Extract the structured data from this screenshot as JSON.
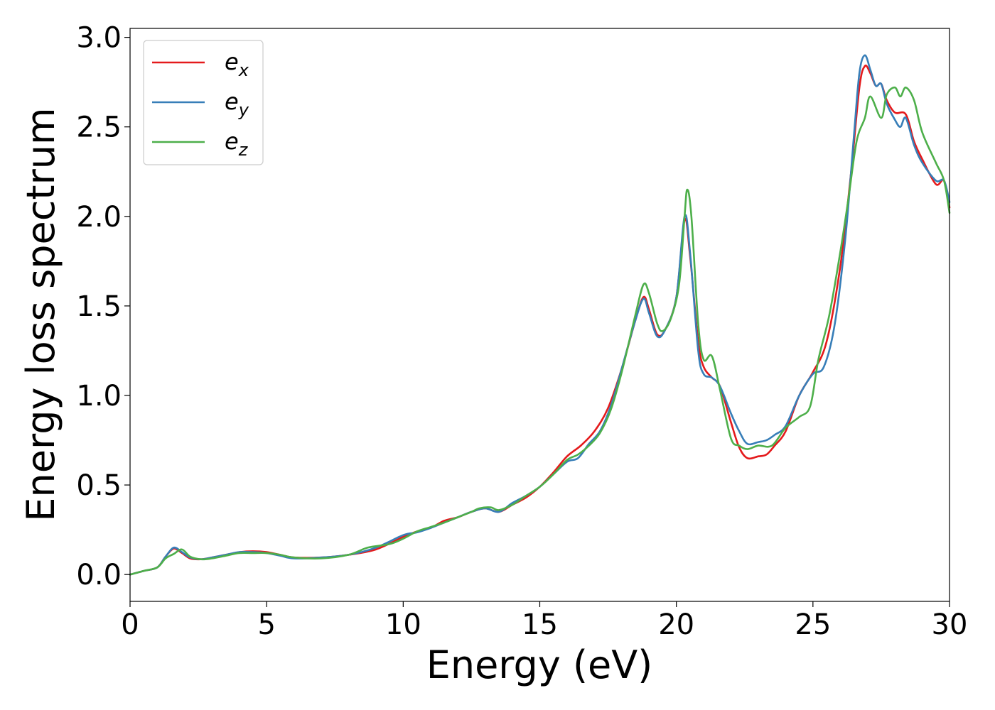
{
  "chart_data": {
    "type": "line",
    "title": "",
    "xlabel": "Energy (eV)",
    "ylabel": "Energy loss spectrum",
    "xlim": [
      0,
      30
    ],
    "ylim": [
      -0.15,
      3.05
    ],
    "xticks": [
      0,
      5,
      10,
      15,
      20,
      25,
      30
    ],
    "xtick_labels": [
      "0",
      "5",
      "10",
      "15",
      "20",
      "25",
      "30"
    ],
    "yticks": [
      0.0,
      0.5,
      1.0,
      1.5,
      2.0,
      2.5,
      3.0
    ],
    "ytick_labels": [
      "0.0",
      "0.5",
      "1.0",
      "1.5",
      "2.0",
      "2.5",
      "3.0"
    ],
    "grid": false,
    "legend_position": "upper-left",
    "series": [
      {
        "name_base": "e",
        "name_sub": "x",
        "color": "#e41a1c",
        "points": [
          [
            0,
            0.0
          ],
          [
            0.5,
            0.02
          ],
          [
            1.0,
            0.04
          ],
          [
            1.3,
            0.1
          ],
          [
            1.6,
            0.145
          ],
          [
            1.9,
            0.12
          ],
          [
            2.2,
            0.09
          ],
          [
            2.6,
            0.085
          ],
          [
            3.0,
            0.095
          ],
          [
            3.5,
            0.11
          ],
          [
            4.0,
            0.125
          ],
          [
            4.5,
            0.13
          ],
          [
            5.0,
            0.125
          ],
          [
            5.5,
            0.11
          ],
          [
            6.0,
            0.095
          ],
          [
            7.0,
            0.095
          ],
          [
            8.0,
            0.11
          ],
          [
            9.0,
            0.14
          ],
          [
            10.0,
            0.21
          ],
          [
            10.5,
            0.24
          ],
          [
            11.0,
            0.26
          ],
          [
            11.5,
            0.3
          ],
          [
            12.0,
            0.32
          ],
          [
            12.5,
            0.35
          ],
          [
            13.0,
            0.37
          ],
          [
            13.5,
            0.35
          ],
          [
            14.0,
            0.39
          ],
          [
            14.5,
            0.43
          ],
          [
            15.0,
            0.49
          ],
          [
            15.5,
            0.57
          ],
          [
            16.0,
            0.66
          ],
          [
            16.5,
            0.72
          ],
          [
            17.0,
            0.8
          ],
          [
            17.5,
            0.93
          ],
          [
            18.0,
            1.15
          ],
          [
            18.5,
            1.42
          ],
          [
            18.8,
            1.55
          ],
          [
            19.0,
            1.48
          ],
          [
            19.3,
            1.34
          ],
          [
            19.6,
            1.37
          ],
          [
            20.0,
            1.55
          ],
          [
            20.3,
            1.98
          ],
          [
            20.5,
            1.78
          ],
          [
            20.8,
            1.3
          ],
          [
            21.0,
            1.16
          ],
          [
            21.3,
            1.1
          ],
          [
            21.6,
            1.05
          ],
          [
            22.0,
            0.85
          ],
          [
            22.3,
            0.71
          ],
          [
            22.6,
            0.65
          ],
          [
            23.0,
            0.66
          ],
          [
            23.3,
            0.67
          ],
          [
            23.6,
            0.72
          ],
          [
            24.0,
            0.8
          ],
          [
            24.5,
            1.0
          ],
          [
            25.0,
            1.13
          ],
          [
            25.5,
            1.3
          ],
          [
            26.0,
            1.72
          ],
          [
            26.4,
            2.25
          ],
          [
            26.7,
            2.72
          ],
          [
            26.9,
            2.84
          ],
          [
            27.1,
            2.8
          ],
          [
            27.3,
            2.73
          ],
          [
            27.5,
            2.74
          ],
          [
            27.7,
            2.65
          ],
          [
            28.0,
            2.58
          ],
          [
            28.4,
            2.57
          ],
          [
            28.7,
            2.42
          ],
          [
            29.0,
            2.32
          ],
          [
            29.5,
            2.18
          ],
          [
            29.8,
            2.2
          ],
          [
            30.0,
            2.05
          ]
        ]
      },
      {
        "name_base": "e",
        "name_sub": "y",
        "color": "#377eb8",
        "points": [
          [
            0,
            0.0
          ],
          [
            0.5,
            0.02
          ],
          [
            1.0,
            0.04
          ],
          [
            1.3,
            0.1
          ],
          [
            1.6,
            0.15
          ],
          [
            1.9,
            0.125
          ],
          [
            2.2,
            0.095
          ],
          [
            2.6,
            0.085
          ],
          [
            3.0,
            0.095
          ],
          [
            3.5,
            0.11
          ],
          [
            4.0,
            0.125
          ],
          [
            4.5,
            0.125
          ],
          [
            5.0,
            0.12
          ],
          [
            5.5,
            0.105
          ],
          [
            6.0,
            0.09
          ],
          [
            7.0,
            0.095
          ],
          [
            8.0,
            0.11
          ],
          [
            9.0,
            0.15
          ],
          [
            10.0,
            0.22
          ],
          [
            10.5,
            0.235
          ],
          [
            11.0,
            0.26
          ],
          [
            11.5,
            0.29
          ],
          [
            12.0,
            0.32
          ],
          [
            12.5,
            0.35
          ],
          [
            13.0,
            0.37
          ],
          [
            13.5,
            0.35
          ],
          [
            14.0,
            0.4
          ],
          [
            14.5,
            0.44
          ],
          [
            15.0,
            0.49
          ],
          [
            15.5,
            0.56
          ],
          [
            16.0,
            0.63
          ],
          [
            16.4,
            0.65
          ],
          [
            16.8,
            0.73
          ],
          [
            17.2,
            0.8
          ],
          [
            17.6,
            0.94
          ],
          [
            18.0,
            1.15
          ],
          [
            18.5,
            1.42
          ],
          [
            18.8,
            1.54
          ],
          [
            19.0,
            1.46
          ],
          [
            19.3,
            1.33
          ],
          [
            19.6,
            1.37
          ],
          [
            20.0,
            1.55
          ],
          [
            20.3,
            2.0
          ],
          [
            20.5,
            1.8
          ],
          [
            20.8,
            1.25
          ],
          [
            21.0,
            1.12
          ],
          [
            21.3,
            1.1
          ],
          [
            21.6,
            1.05
          ],
          [
            22.0,
            0.9
          ],
          [
            22.3,
            0.8
          ],
          [
            22.6,
            0.73
          ],
          [
            23.0,
            0.74
          ],
          [
            23.3,
            0.75
          ],
          [
            23.6,
            0.78
          ],
          [
            24.0,
            0.83
          ],
          [
            24.5,
            1.0
          ],
          [
            25.0,
            1.12
          ],
          [
            25.4,
            1.16
          ],
          [
            25.8,
            1.4
          ],
          [
            26.2,
            1.9
          ],
          [
            26.5,
            2.45
          ],
          [
            26.7,
            2.8
          ],
          [
            26.9,
            2.9
          ],
          [
            27.1,
            2.82
          ],
          [
            27.3,
            2.73
          ],
          [
            27.5,
            2.74
          ],
          [
            27.7,
            2.63
          ],
          [
            28.0,
            2.54
          ],
          [
            28.2,
            2.5
          ],
          [
            28.4,
            2.55
          ],
          [
            28.7,
            2.4
          ],
          [
            29.0,
            2.3
          ],
          [
            29.5,
            2.2
          ],
          [
            29.8,
            2.2
          ],
          [
            30.0,
            2.08
          ]
        ]
      },
      {
        "name_base": "e",
        "name_sub": "z",
        "color": "#4daf4a",
        "points": [
          [
            0,
            0.0
          ],
          [
            0.5,
            0.02
          ],
          [
            1.0,
            0.04
          ],
          [
            1.3,
            0.09
          ],
          [
            1.6,
            0.115
          ],
          [
            1.9,
            0.14
          ],
          [
            2.2,
            0.1
          ],
          [
            2.6,
            0.085
          ],
          [
            3.0,
            0.09
          ],
          [
            3.5,
            0.105
          ],
          [
            4.0,
            0.12
          ],
          [
            4.5,
            0.12
          ],
          [
            5.0,
            0.12
          ],
          [
            5.5,
            0.11
          ],
          [
            6.0,
            0.095
          ],
          [
            7.0,
            0.09
          ],
          [
            8.0,
            0.11
          ],
          [
            8.7,
            0.15
          ],
          [
            9.5,
            0.17
          ],
          [
            10.0,
            0.2
          ],
          [
            10.5,
            0.24
          ],
          [
            11.0,
            0.265
          ],
          [
            11.5,
            0.29
          ],
          [
            12.0,
            0.32
          ],
          [
            12.5,
            0.35
          ],
          [
            12.8,
            0.37
          ],
          [
            13.2,
            0.375
          ],
          [
            13.5,
            0.36
          ],
          [
            14.0,
            0.39
          ],
          [
            14.5,
            0.44
          ],
          [
            15.0,
            0.49
          ],
          [
            15.5,
            0.56
          ],
          [
            16.0,
            0.64
          ],
          [
            16.4,
            0.67
          ],
          [
            16.8,
            0.72
          ],
          [
            17.2,
            0.79
          ],
          [
            17.6,
            0.92
          ],
          [
            18.0,
            1.13
          ],
          [
            18.5,
            1.45
          ],
          [
            18.8,
            1.62
          ],
          [
            19.0,
            1.57
          ],
          [
            19.3,
            1.4
          ],
          [
            19.5,
            1.36
          ],
          [
            19.8,
            1.43
          ],
          [
            20.1,
            1.62
          ],
          [
            20.3,
            2.0
          ],
          [
            20.4,
            2.15
          ],
          [
            20.55,
            2.0
          ],
          [
            20.8,
            1.4
          ],
          [
            21.0,
            1.2
          ],
          [
            21.3,
            1.22
          ],
          [
            21.6,
            1.03
          ],
          [
            22.0,
            0.76
          ],
          [
            22.3,
            0.72
          ],
          [
            22.6,
            0.7
          ],
          [
            23.0,
            0.72
          ],
          [
            23.5,
            0.72
          ],
          [
            24.0,
            0.82
          ],
          [
            24.5,
            0.88
          ],
          [
            24.9,
            0.94
          ],
          [
            25.2,
            1.2
          ],
          [
            25.6,
            1.45
          ],
          [
            26.0,
            1.8
          ],
          [
            26.3,
            2.1
          ],
          [
            26.6,
            2.42
          ],
          [
            26.9,
            2.55
          ],
          [
            27.1,
            2.67
          ],
          [
            27.5,
            2.55
          ],
          [
            27.7,
            2.68
          ],
          [
            28.0,
            2.72
          ],
          [
            28.2,
            2.67
          ],
          [
            28.4,
            2.72
          ],
          [
            28.7,
            2.65
          ],
          [
            29.0,
            2.47
          ],
          [
            29.5,
            2.3
          ],
          [
            29.8,
            2.2
          ],
          [
            30.0,
            2.02
          ]
        ]
      }
    ]
  }
}
